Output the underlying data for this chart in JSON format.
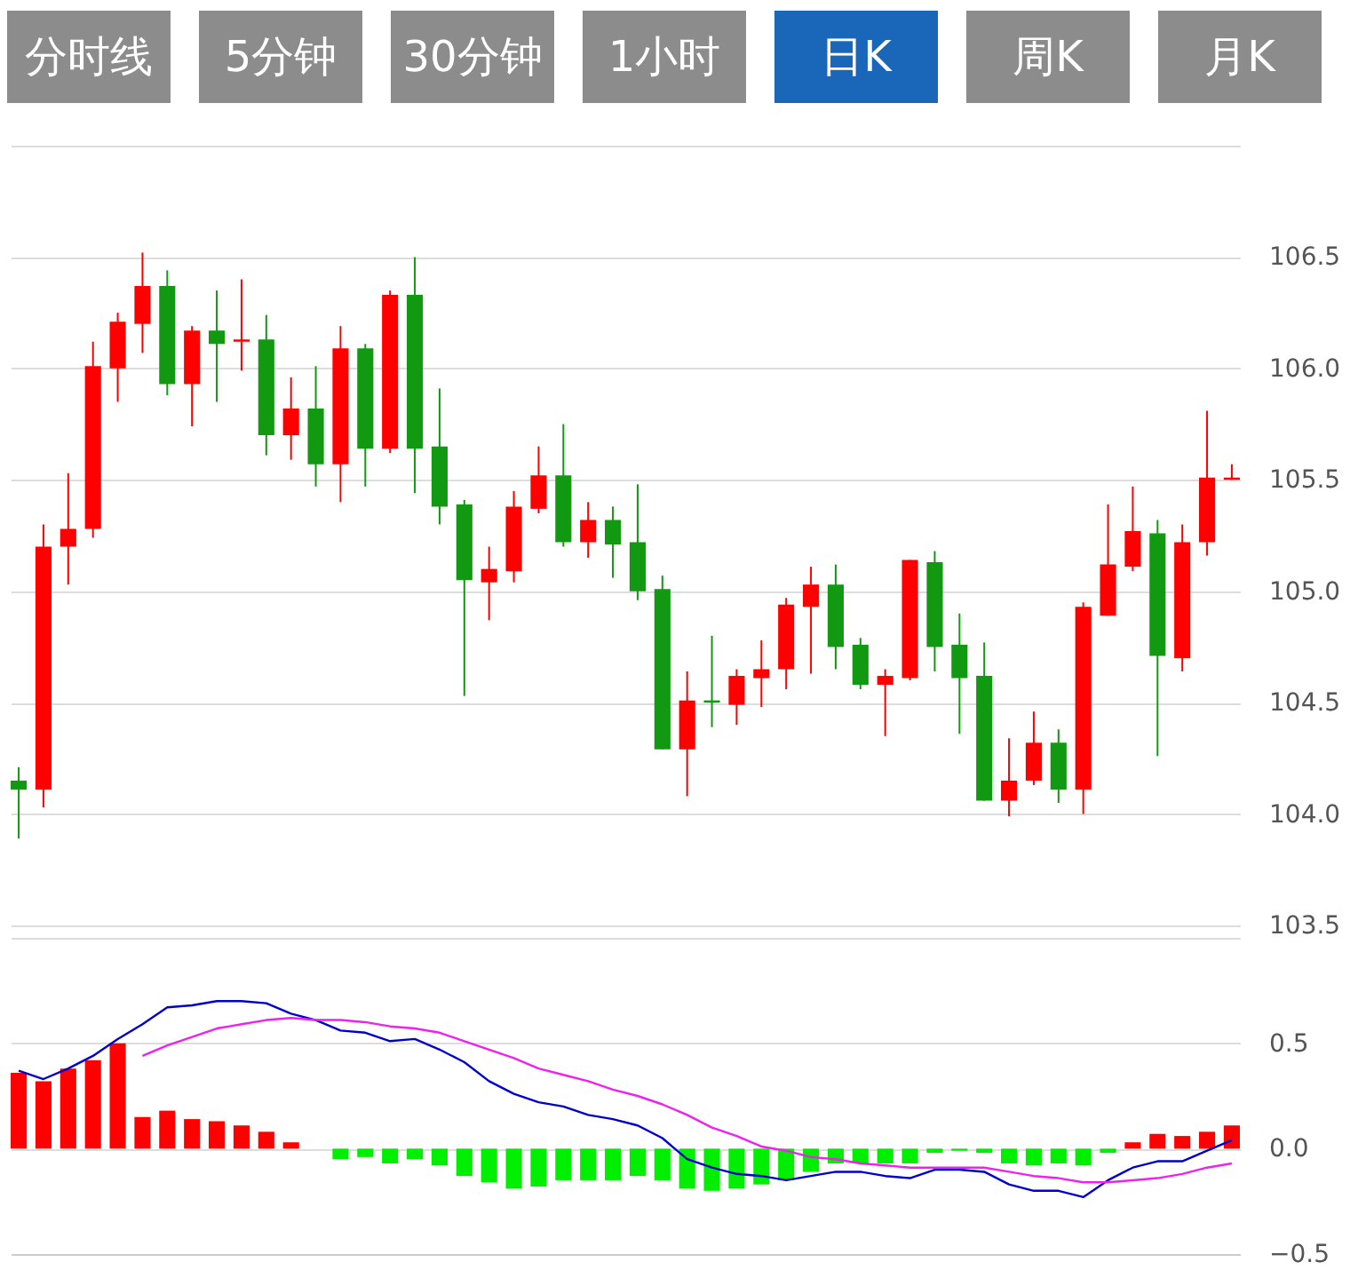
{
  "chart_data": [
    {
      "type": "other",
      "categories": [
        "分时线",
        "5分钟",
        "30分钟",
        "1小时",
        "日K",
        "周K",
        "月K"
      ],
      "colors": [
        "#8c8c8c",
        "#8c8c8c",
        "#8c8c8c",
        "#8c8c8c",
        "#1a66b8",
        "#8c8c8c",
        "#8c8c8c"
      ]
    },
    {
      "type": "candlestick",
      "categories": [
        null,
        null,
        null,
        null,
        null,
        null,
        null,
        null,
        null,
        null,
        null,
        null,
        null,
        null,
        null,
        null,
        null,
        null,
        null,
        null,
        null,
        null,
        null,
        null,
        null,
        null,
        null,
        null,
        null,
        null,
        null,
        null,
        null,
        null,
        null,
        null,
        null,
        null,
        null,
        null,
        null,
        null,
        null,
        null,
        null,
        null,
        null,
        null,
        null,
        null
      ],
      "ohlc": [
        [
          104.15,
          104.21,
          103.89,
          104.11
        ],
        [
          104.11,
          105.3,
          104.03,
          105.2
        ],
        [
          105.2,
          105.53,
          105.03,
          105.28
        ],
        [
          105.28,
          106.12,
          105.24,
          106.01
        ],
        [
          106.0,
          106.25,
          105.85,
          106.21
        ],
        [
          106.2,
          106.52,
          106.07,
          106.37
        ],
        [
          106.37,
          106.44,
          105.88,
          105.93
        ],
        [
          105.93,
          106.19,
          105.74,
          106.17
        ],
        [
          106.17,
          106.35,
          105.85,
          106.11
        ],
        [
          106.12,
          106.4,
          105.99,
          106.13
        ],
        [
          106.13,
          106.24,
          105.61,
          105.7
        ],
        [
          105.7,
          105.96,
          105.59,
          105.82
        ],
        [
          105.82,
          106.01,
          105.47,
          105.57
        ],
        [
          105.57,
          106.19,
          105.4,
          106.09
        ],
        [
          106.09,
          106.11,
          105.47,
          105.64
        ],
        [
          105.64,
          106.35,
          105.62,
          106.33
        ],
        [
          106.33,
          106.5,
          105.44,
          105.64
        ],
        [
          105.65,
          105.91,
          105.3,
          105.38
        ],
        [
          105.39,
          105.41,
          104.53,
          105.05
        ],
        [
          105.04,
          105.2,
          104.87,
          105.1
        ],
        [
          105.09,
          105.45,
          105.04,
          105.38
        ],
        [
          105.37,
          105.65,
          105.35,
          105.52
        ],
        [
          105.52,
          105.75,
          105.2,
          105.22
        ],
        [
          105.22,
          105.4,
          105.15,
          105.32
        ],
        [
          105.32,
          105.38,
          105.06,
          105.21
        ],
        [
          105.22,
          105.48,
          104.96,
          105.0
        ],
        [
          105.01,
          105.07,
          104.29,
          104.29
        ],
        [
          104.29,
          104.64,
          104.08,
          104.51
        ],
        [
          104.51,
          104.8,
          104.39,
          104.5
        ],
        [
          104.49,
          104.65,
          104.4,
          104.62
        ],
        [
          104.61,
          104.78,
          104.48,
          104.65
        ],
        [
          104.65,
          104.97,
          104.56,
          104.94
        ],
        [
          104.93,
          105.11,
          104.63,
          105.03
        ],
        [
          105.03,
          105.12,
          104.65,
          104.75
        ],
        [
          104.76,
          104.79,
          104.56,
          104.58
        ],
        [
          104.58,
          104.65,
          104.35,
          104.62
        ],
        [
          104.61,
          105.14,
          104.6,
          105.14
        ],
        [
          105.13,
          105.18,
          104.64,
          104.75
        ],
        [
          104.76,
          104.9,
          104.36,
          104.61
        ],
        [
          104.62,
          104.77,
          104.06,
          104.06
        ],
        [
          104.06,
          104.34,
          103.99,
          104.15
        ],
        [
          104.15,
          104.46,
          104.13,
          104.32
        ],
        [
          104.32,
          104.38,
          104.05,
          104.11
        ],
        [
          104.11,
          104.95,
          104.0,
          104.93
        ],
        [
          104.89,
          105.39,
          104.89,
          105.12
        ],
        [
          105.11,
          105.47,
          105.09,
          105.27
        ],
        [
          105.26,
          105.32,
          104.26,
          104.71
        ],
        [
          104.7,
          105.3,
          104.64,
          105.22
        ],
        [
          105.22,
          105.81,
          105.16,
          105.51
        ],
        [
          105.5,
          105.57,
          105.5,
          105.51
        ]
      ],
      "colors": [
        "#119911",
        "#ff0000",
        "#ff0000",
        "#ff0000",
        "#ff0000",
        "#ff0000",
        "#119911",
        "#ff0000",
        "#119911",
        "#ff0000",
        "#119911",
        "#ff0000",
        "#119911",
        "#ff0000",
        "#119911",
        "#ff0000",
        "#119911",
        "#119911",
        "#119911",
        "#ff0000",
        "#ff0000",
        "#ff0000",
        "#119911",
        "#ff0000",
        "#119911",
        "#119911",
        "#119911",
        "#ff0000",
        "#119911",
        "#ff0000",
        "#ff0000",
        "#ff0000",
        "#ff0000",
        "#119911",
        "#119911",
        "#ff0000",
        "#ff0000",
        "#119911",
        "#119911",
        "#119911",
        "#ff0000",
        "#ff0000",
        "#119911",
        "#ff0000",
        "#ff0000",
        "#ff0000",
        "#119911",
        "#ff0000",
        "#ff0000",
        "#ff0000"
      ],
      "ylim": [
        103.5,
        107.0
      ],
      "yticks": [
        103.5,
        {
          "value": 104,
          "label": "104.0"
        },
        104.5,
        {
          "value": 105,
          "label": "105.0"
        },
        105.5,
        {
          "value": 106,
          "label": "106.0"
        },
        106.5,
        {
          "value": 107,
          "label": null
        }
      ],
      "grid": "y",
      "tick_labels": "y"
    },
    {
      "type": "bar",
      "categories": [
        null,
        null,
        null,
        null,
        null,
        null,
        null,
        null,
        null,
        null,
        null,
        null,
        null,
        null,
        null,
        null,
        null,
        null,
        null,
        null,
        null,
        null,
        null,
        null,
        null,
        null,
        null,
        null,
        null,
        null,
        null,
        null,
        null,
        null,
        null,
        null,
        null,
        null,
        null,
        null,
        null,
        null,
        null,
        null,
        null,
        null,
        null,
        null,
        null,
        null
      ],
      "series": [
        {
          "type": "bar",
          "colors": [
            "#ff0000",
            "#ff0000",
            "#ff0000",
            "#ff0000",
            "#ff0000",
            "#ff0000",
            "#ff0000",
            "#ff0000",
            "#ff0000",
            "#ff0000",
            "#ff0000",
            "#ff0000",
            "#00ee00",
            "#00ee00",
            "#00ee00",
            "#00ee00",
            "#00ee00",
            "#00ee00",
            "#00ee00",
            "#00ee00",
            "#00ee00",
            "#00ee00",
            "#00ee00",
            "#00ee00",
            "#00ee00",
            "#00ee00",
            "#00ee00",
            "#00ee00",
            "#00ee00",
            "#00ee00",
            "#00ee00",
            "#00ee00",
            "#00ee00",
            "#00ee00",
            "#00ee00",
            "#00ee00",
            "#00ee00",
            "#00ee00",
            "#00ee00",
            "#00ee00",
            "#00ee00",
            "#00ee00",
            "#00ee00",
            "#00ee00",
            "#00ee00",
            "#ff0000",
            "#ff0000",
            "#ff0000",
            "#ff0000",
            "#ff0000"
          ],
          "values": [
            0.36,
            0.32,
            0.38,
            0.42,
            0.5,
            0.15,
            0.18,
            0.14,
            0.13,
            0.11,
            0.08,
            0.03,
            0.0,
            -0.05,
            -0.04,
            -0.07,
            -0.05,
            -0.08,
            -0.13,
            -0.16,
            -0.19,
            -0.18,
            -0.15,
            -0.15,
            -0.15,
            -0.13,
            -0.15,
            -0.19,
            -0.2,
            -0.19,
            -0.17,
            -0.15,
            -0.11,
            -0.07,
            -0.07,
            -0.07,
            -0.07,
            -0.02,
            -0.01,
            -0.02,
            -0.07,
            -0.08,
            -0.07,
            -0.08,
            -0.02,
            0.03,
            0.07,
            0.06,
            0.08,
            0.11
          ]
        },
        {
          "type": "line",
          "color": "#0000cc",
          "values": [
            0.37,
            0.33,
            0.38,
            0.44,
            0.52,
            0.59,
            0.67,
            0.68,
            0.7,
            0.7,
            0.69,
            0.64,
            0.61,
            0.56,
            0.55,
            0.51,
            0.52,
            0.47,
            0.41,
            0.32,
            0.26,
            0.22,
            0.2,
            0.16,
            0.14,
            0.11,
            0.05,
            -0.05,
            -0.09,
            -0.12,
            -0.13,
            -0.15,
            -0.13,
            -0.11,
            -0.11,
            -0.13,
            -0.14,
            -0.1,
            -0.1,
            -0.11,
            -0.17,
            -0.2,
            -0.2,
            -0.23,
            -0.15,
            -0.09,
            -0.06,
            -0.06,
            -0.01,
            0.04
          ]
        },
        {
          "type": "line",
          "color": "#ee22ee",
          "values": [
            null,
            null,
            null,
            null,
            null,
            0.44,
            0.49,
            0.53,
            0.57,
            0.59,
            0.61,
            0.62,
            0.61,
            0.61,
            0.6,
            0.58,
            0.57,
            0.55,
            0.51,
            0.47,
            0.43,
            0.38,
            0.35,
            0.32,
            0.28,
            0.25,
            0.21,
            0.16,
            0.1,
            0.06,
            0.01,
            -0.01,
            -0.04,
            -0.05,
            -0.07,
            -0.08,
            -0.09,
            -0.09,
            -0.09,
            -0.09,
            -0.11,
            -0.13,
            -0.14,
            -0.16,
            -0.16,
            -0.15,
            -0.14,
            -0.12,
            -0.09,
            -0.07
          ]
        }
      ],
      "ylim": [
        -0.5,
        1.0
      ],
      "yticks": [
        -0.5,
        {
          "value": 0,
          "label": "0.0"
        },
        0.5,
        {
          "value": 1,
          "label": null
        }
      ],
      "grid": "y",
      "tick_labels": "y"
    }
  ]
}
